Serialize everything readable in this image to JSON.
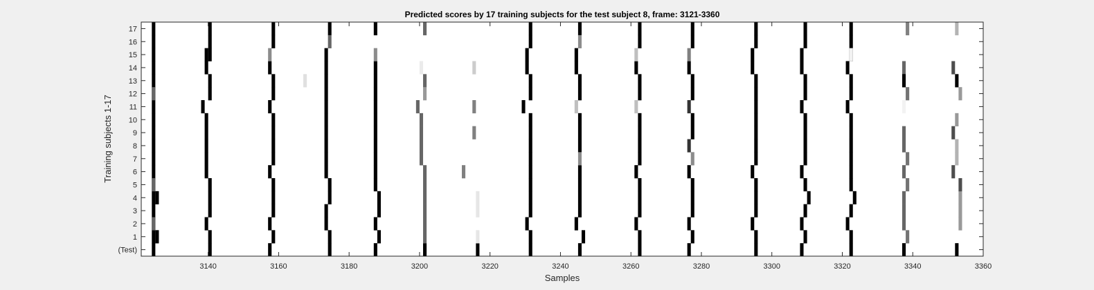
{
  "chart_data": {
    "type": "heatmap",
    "title": "Predicted scores by 17 training subjects for the test subject 8, frame: 3121-3360",
    "xlabel": "Samples",
    "ylabel": "Training subjects 1-17",
    "xlim": [
      3121,
      3360
    ],
    "x_ticks": [
      3140,
      3160,
      3180,
      3200,
      3220,
      3240,
      3260,
      3280,
      3300,
      3320,
      3340,
      3360
    ],
    "rows": [
      "(Test)",
      "1",
      "2",
      "3",
      "4",
      "5",
      "6",
      "7",
      "8",
      "9",
      "10",
      "11",
      "12",
      "13",
      "14",
      "15",
      "16",
      "17"
    ],
    "colormap": "white-to-black (higher score = darker)",
    "background_color": "#ffffff",
    "cells": [
      {
        "x": 3124,
        "rows": [
          0,
          1,
          2,
          3,
          4,
          5,
          6,
          7,
          8,
          9,
          10,
          11,
          12,
          13,
          14,
          15,
          16,
          17
        ],
        "level": 1.0
      },
      {
        "x": 3124,
        "rows": [
          2,
          5,
          12
        ],
        "level": 0.6
      },
      {
        "x": 3125,
        "rows": [
          1,
          4
        ],
        "level": 1.0
      },
      {
        "x": 3140,
        "rows": [
          0,
          1,
          3,
          4,
          5,
          12,
          13,
          15,
          16,
          17
        ],
        "level": 1.0
      },
      {
        "x": 3139,
        "rows": [
          2,
          6,
          7,
          8,
          9,
          10,
          14,
          15
        ],
        "level": 1.0
      },
      {
        "x": 3138,
        "rows": [
          11
        ],
        "level": 1.0
      },
      {
        "x": 3157,
        "rows": [
          0,
          2,
          6,
          11,
          14
        ],
        "level": 1.0
      },
      {
        "x": 3157,
        "rows": [
          15
        ],
        "level": 0.45
      },
      {
        "x": 3158,
        "rows": [
          1,
          3,
          4,
          5,
          7,
          8,
          9,
          10,
          12,
          13,
          16,
          17
        ],
        "level": 1.0
      },
      {
        "x": 3167,
        "rows": [
          13
        ],
        "level": 0.12
      },
      {
        "x": 3174,
        "rows": [
          0,
          1,
          4,
          5,
          17
        ],
        "level": 1.0
      },
      {
        "x": 3173,
        "rows": [
          2,
          3,
          6,
          7,
          8,
          9,
          10,
          11,
          12,
          13,
          14,
          15
        ],
        "level": 1.0
      },
      {
        "x": 3174,
        "rows": [
          16
        ],
        "level": 0.6
      },
      {
        "x": 3187,
        "rows": [
          0,
          2,
          5,
          6,
          7,
          8,
          9,
          10,
          11,
          12,
          13,
          14,
          17
        ],
        "level": 1.0
      },
      {
        "x": 3187,
        "rows": [
          15
        ],
        "level": 0.45
      },
      {
        "x": 3188,
        "rows": [
          1,
          3,
          4
        ],
        "level": 1.0
      },
      {
        "x": 3201,
        "rows": [
          0
        ],
        "level": 1.0
      },
      {
        "x": 3201,
        "rows": [
          1,
          2,
          3,
          4,
          5,
          6,
          13,
          17
        ],
        "level": 0.6
      },
      {
        "x": 3201,
        "rows": [
          12
        ],
        "level": 0.4
      },
      {
        "x": 3200,
        "rows": [
          7,
          8,
          9,
          10
        ],
        "level": 0.6
      },
      {
        "x": 3199,
        "rows": [
          11
        ],
        "level": 0.6
      },
      {
        "x": 3200,
        "rows": [
          14
        ],
        "level": 0.08
      },
      {
        "x": 3212,
        "rows": [
          6
        ],
        "level": 0.5
      },
      {
        "x": 3216,
        "rows": [
          0
        ],
        "level": 1.0
      },
      {
        "x": 3216,
        "rows": [
          1,
          3,
          4
        ],
        "level": 0.1
      },
      {
        "x": 3215,
        "rows": [
          9,
          11
        ],
        "level": 0.5
      },
      {
        "x": 3215,
        "rows": [
          14
        ],
        "level": 0.2
      },
      {
        "x": 3229,
        "rows": [
          11
        ],
        "level": 1.0
      },
      {
        "x": 3231,
        "rows": [
          0,
          1,
          3,
          4,
          5,
          6,
          7,
          8,
          9,
          10,
          12,
          13,
          16,
          17
        ],
        "level": 1.0
      },
      {
        "x": 3230,
        "rows": [
          2,
          14,
          15
        ],
        "level": 1.0
      },
      {
        "x": 3245,
        "rows": [
          0,
          5,
          6,
          8,
          9,
          17
        ],
        "level": 1.0
      },
      {
        "x": 3246,
        "rows": [
          1
        ],
        "level": 1.0
      },
      {
        "x": 3244,
        "rows": [
          2,
          14,
          15
        ],
        "level": 1.0
      },
      {
        "x": 3245,
        "rows": [
          3,
          4,
          10,
          12,
          13
        ],
        "level": 1.0
      },
      {
        "x": 3245,
        "rows": [
          7,
          16
        ],
        "level": 0.45
      },
      {
        "x": 3244,
        "rows": [
          11
        ],
        "level": 0.25
      },
      {
        "x": 3262,
        "rows": [
          0,
          1,
          3,
          4,
          5,
          7,
          8,
          9,
          10,
          12,
          13,
          16,
          17
        ],
        "level": 1.0
      },
      {
        "x": 3261,
        "rows": [
          2,
          6,
          14
        ],
        "level": 1.0
      },
      {
        "x": 3261,
        "rows": [
          11,
          15
        ],
        "level": 0.25
      },
      {
        "x": 3276,
        "rows": [
          0,
          2,
          6,
          14
        ],
        "level": 1.0
      },
      {
        "x": 3276,
        "rows": [
          11,
          8
        ],
        "level": 0.8
      },
      {
        "x": 3277,
        "rows": [
          1,
          3,
          4,
          5,
          9,
          10,
          12,
          13,
          16,
          17
        ],
        "level": 1.0
      },
      {
        "x": 3276,
        "rows": [
          15
        ],
        "level": 0.5
      },
      {
        "x": 3277,
        "rows": [
          7
        ],
        "level": 0.45
      },
      {
        "x": 3294,
        "rows": [
          2,
          6,
          14,
          15
        ],
        "level": 1.0
      },
      {
        "x": 3295,
        "rows": [
          0,
          1,
          3,
          4,
          5,
          7,
          8,
          9,
          10,
          11,
          12,
          13,
          16,
          17
        ],
        "level": 1.0
      },
      {
        "x": 3308,
        "rows": [
          0,
          2,
          6,
          11,
          14,
          15
        ],
        "level": 1.0
      },
      {
        "x": 3309,
        "rows": [
          1,
          3,
          5,
          7,
          8,
          9,
          10,
          12,
          13,
          16,
          17
        ],
        "level": 1.0
      },
      {
        "x": 3310,
        "rows": [
          4
        ],
        "level": 1.0
      },
      {
        "x": 3322,
        "rows": [
          0,
          1,
          3,
          5,
          6,
          7,
          8,
          9,
          10,
          12,
          13,
          15,
          16,
          17
        ],
        "level": 1.0
      },
      {
        "x": 3321,
        "rows": [
          2,
          11,
          14
        ],
        "level": 1.0
      },
      {
        "x": 3323,
        "rows": [
          4
        ],
        "level": 1.0
      },
      {
        "x": 3322,
        "rows": [
          15
        ],
        "level": 0.05
      },
      {
        "x": 3337,
        "rows": [
          0
        ],
        "level": 1.0
      },
      {
        "x": 3338,
        "rows": [
          1,
          5,
          7,
          12
        ],
        "level": 0.55
      },
      {
        "x": 3337,
        "rows": [
          2,
          3,
          4,
          6,
          8,
          9,
          14
        ],
        "level": 0.6
      },
      {
        "x": 3337,
        "rows": [
          11
        ],
        "level": 0.05
      },
      {
        "x": 3337,
        "rows": [
          13
        ],
        "level": 1.0
      },
      {
        "x": 3338,
        "rows": [
          17
        ],
        "level": 0.5
      },
      {
        "x": 3352,
        "rows": [
          0
        ],
        "level": 1.0
      },
      {
        "x": 3351,
        "rows": [
          6,
          9,
          14
        ],
        "level": 0.7
      },
      {
        "x": 3352,
        "rows": [
          8,
          17
        ],
        "level": 0.3
      },
      {
        "x": 3352,
        "rows": [
          13
        ],
        "level": 1.0
      },
      {
        "x": 3352,
        "rows": [
          10
        ],
        "level": 0.4
      },
      {
        "x": 3353,
        "rows": [
          2,
          3,
          4,
          12
        ],
        "level": 0.4
      },
      {
        "x": 3353,
        "rows": [
          5
        ],
        "level": 0.7
      },
      {
        "x": 3352,
        "rows": [
          7
        ],
        "level": 0.3
      }
    ]
  }
}
